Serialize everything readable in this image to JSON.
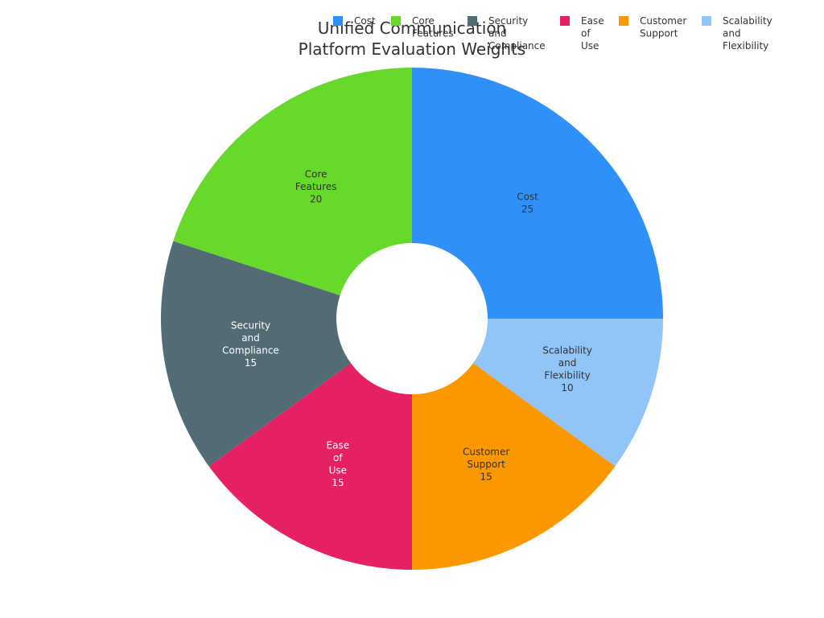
{
  "chart_data": {
    "type": "pie",
    "donut": true,
    "title_lines": [
      "Unified Communication",
      "Platform Evaluation Weights"
    ],
    "categories": [
      "Cost",
      "Scalability and Flexibility",
      "Customer Support",
      "Ease of Use",
      "Security and Compliance",
      "Core Features"
    ],
    "values": [
      25,
      10,
      15,
      15,
      15,
      20
    ],
    "colors": [
      "#2f91f7",
      "#91c5f8",
      "#fb9800",
      "#e62064",
      "#536b75",
      "#66d92b"
    ],
    "label_colors": [
      "#333333",
      "#333333",
      "#333333",
      "#ffffff",
      "#ffffff",
      "#333333"
    ],
    "legend_order": [
      "Cost",
      "Core Features",
      "Security and Compliance",
      "Ease of Use",
      "Customer Support",
      "Scalability and Flexibility"
    ],
    "legend_position": "top",
    "direction": "clockwise",
    "start_angle": "top"
  }
}
